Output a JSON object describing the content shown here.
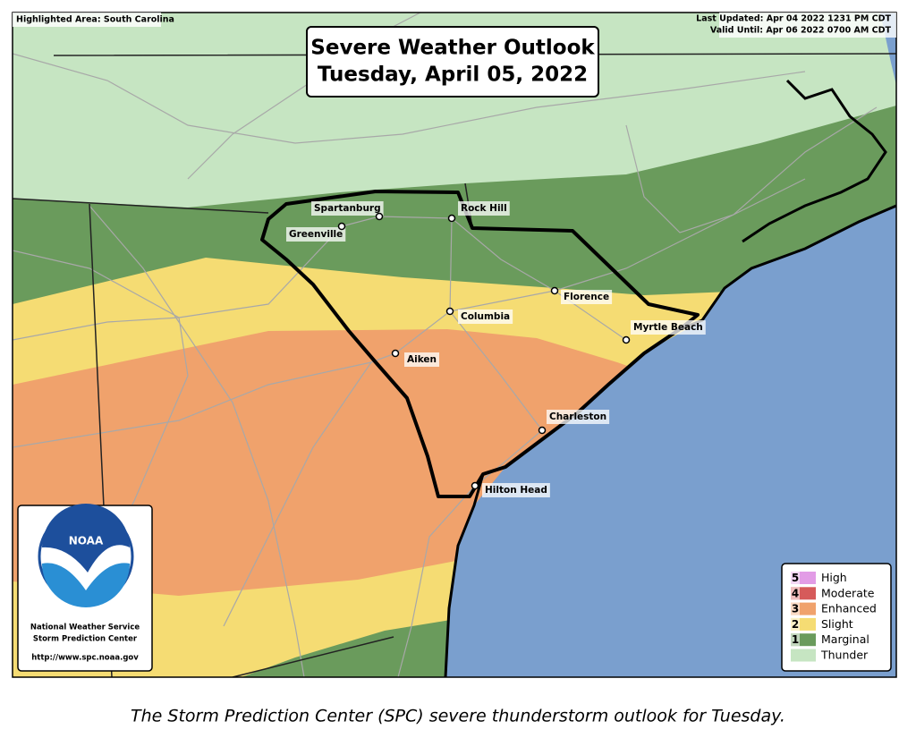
{
  "header": {
    "highlighted_area": "Highlighted Area: South Carolina",
    "last_updated": "Last Updated: Apr 04 2022 1231 PM CDT",
    "valid_until": "Valid Until: Apr 06 2022 0700 AM CDT"
  },
  "title": {
    "line1": "Severe Weather Outlook",
    "line2": "Tuesday, April 05, 2022"
  },
  "cities": [
    "Spartanburg",
    "Rock Hill",
    "Greenville",
    "Florence",
    "Columbia",
    "Myrtle Beach",
    "Aiken",
    "Charleston",
    "Hilton Head"
  ],
  "legend": [
    {
      "number": "5",
      "label": "High",
      "color": "#e29ce6"
    },
    {
      "number": "4",
      "label": "Moderate",
      "color": "#d65a5a"
    },
    {
      "number": "3",
      "label": "Enhanced",
      "color": "#f0a26c"
    },
    {
      "number": "2",
      "label": "Slight",
      "color": "#f5dc73"
    },
    {
      "number": "1",
      "label": "Marginal",
      "color": "#6a9b5c"
    },
    {
      "label": "Thunder",
      "color": "#c6e5c2"
    }
  ],
  "logo": {
    "mark": "NOAA",
    "line1": "National Weather Service",
    "line2": "Storm Prediction Center",
    "url": "http://www.spc.noaa.gov"
  },
  "caption": "The Storm Prediction Center (SPC) severe thunderstorm outlook for Tuesday."
}
